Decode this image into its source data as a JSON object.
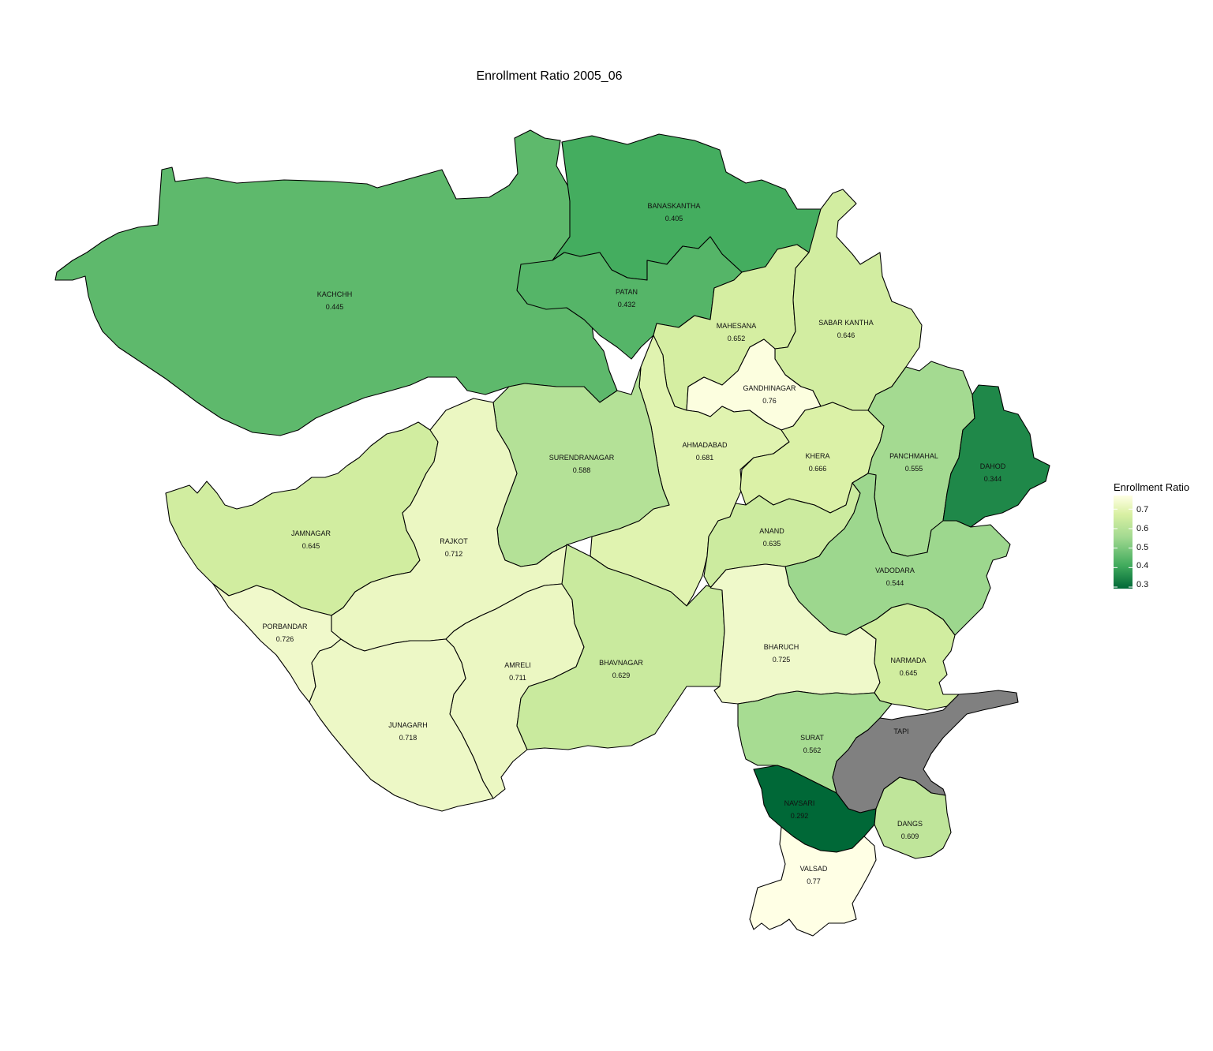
{
  "title": "Enrollment Ratio 2005_06",
  "legend": {
    "title": "Enrollment Ratio",
    "ticks": [
      "0.7",
      "0.6",
      "0.5",
      "0.4",
      "0.3"
    ],
    "range": [
      0.292,
      0.77
    ],
    "colors": {
      "low": "#006837",
      "mid_low": "#41ab5d",
      "mid": "#a1d990",
      "mid_high": "#d9f0a3",
      "high": "#ffffe5"
    }
  },
  "missing_color": "#808080",
  "districts": [
    {
      "name": "KACHCHH",
      "value": "0.445"
    },
    {
      "name": "BANASKANTHA",
      "value": "0.405"
    },
    {
      "name": "PATAN",
      "value": "0.432"
    },
    {
      "name": "MAHESANA",
      "value": "0.652"
    },
    {
      "name": "SABAR KANTHA",
      "value": "0.646"
    },
    {
      "name": "GANDHINAGAR",
      "value": "0.76"
    },
    {
      "name": "AHMADABAD",
      "value": "0.681"
    },
    {
      "name": "SURENDRANAGAR",
      "value": "0.588"
    },
    {
      "name": "KHERA",
      "value": "0.666"
    },
    {
      "name": "PANCHMAHAL",
      "value": "0.555"
    },
    {
      "name": "DAHOD",
      "value": "0.344"
    },
    {
      "name": "JAMNAGAR",
      "value": "0.645"
    },
    {
      "name": "RAJKOT",
      "value": "0.712"
    },
    {
      "name": "ANAND",
      "value": "0.635"
    },
    {
      "name": "VADODARA",
      "value": "0.544"
    },
    {
      "name": "PORBANDAR",
      "value": "0.726"
    },
    {
      "name": "AMRELI",
      "value": "0.711"
    },
    {
      "name": "BHAVNAGAR",
      "value": "0.629"
    },
    {
      "name": "BHARUCH",
      "value": "0.725"
    },
    {
      "name": "NARMADA",
      "value": "0.645"
    },
    {
      "name": "JUNAGARH",
      "value": "0.718"
    },
    {
      "name": "SURAT",
      "value": "0.562"
    },
    {
      "name": "TAPI",
      "value": ""
    },
    {
      "name": "NAVSARI",
      "value": "0.292"
    },
    {
      "name": "DANGS",
      "value": "0.609"
    },
    {
      "name": "VALSAD",
      "value": "0.77"
    }
  ]
}
